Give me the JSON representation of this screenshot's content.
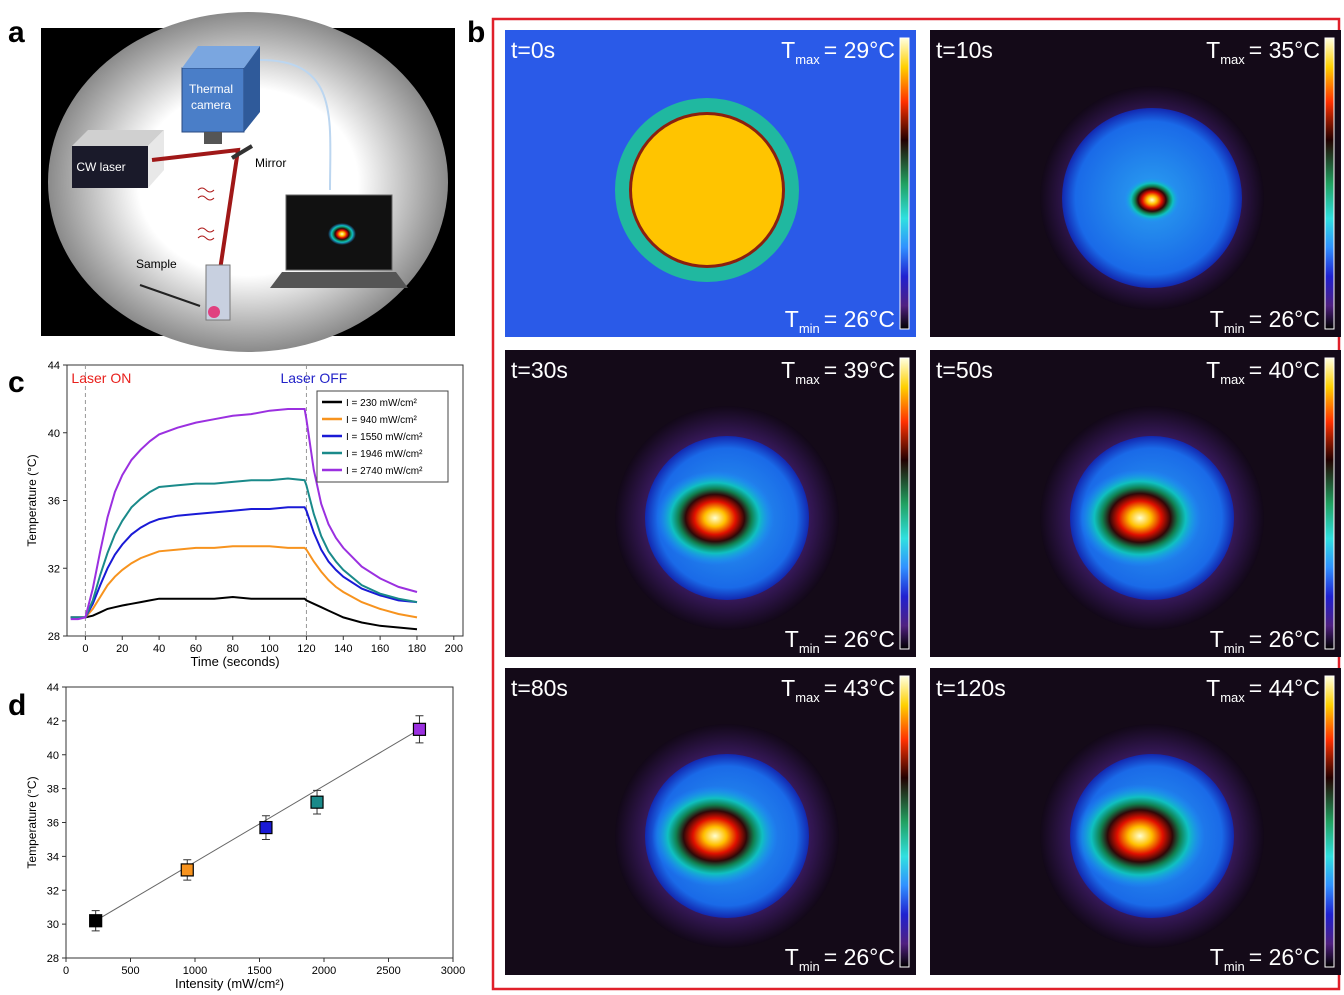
{
  "panel_labels": [
    "a",
    "b",
    "c",
    "d"
  ],
  "panel_a": {
    "camera": [
      "Thermal",
      "camera"
    ],
    "laser": "CW laser",
    "mirror": "Mirror",
    "sample": "Sample"
  },
  "panel_b": {
    "T": "T",
    "max": "max",
    "min": "min",
    "images": [
      {
        "time": "t=0s",
        "tmax": "= 29°C",
        "tmin": "= 26°C"
      },
      {
        "time": "t=10s",
        "tmax": "= 35°C",
        "tmin": "= 26°C"
      },
      {
        "time": "t=30s",
        "tmax": "= 39°C",
        "tmin": "= 26°C"
      },
      {
        "time": "t=50s",
        "tmax": "= 40°C",
        "tmin": "= 26°C"
      },
      {
        "time": "t=80s",
        "tmax": "= 43°C",
        "tmin": "= 26°C"
      },
      {
        "time": "t=120s",
        "tmax": "= 44°C",
        "tmin": "= 26°C"
      }
    ]
  },
  "chart_data": [
    {
      "type": "line",
      "x_label": "Time (seconds)",
      "y_label": "Temperature (°C)",
      "x": [
        -8,
        -4,
        0,
        4,
        8,
        12,
        16,
        20,
        25,
        30,
        35,
        40,
        50,
        60,
        70,
        80,
        90,
        100,
        110,
        119,
        120,
        124,
        128,
        132,
        136,
        140,
        150,
        160,
        170,
        180
      ],
      "series": [
        {
          "name": "I = 230 mW/cm²",
          "color": "#000000",
          "values": [
            29.1,
            29.1,
            29.1,
            29.2,
            29.4,
            29.6,
            29.7,
            29.8,
            29.9,
            30.0,
            30.1,
            30.2,
            30.2,
            30.2,
            30.2,
            30.3,
            30.2,
            30.2,
            30.2,
            30.2,
            30.1,
            29.9,
            29.7,
            29.5,
            29.3,
            29.1,
            28.8,
            28.6,
            28.5,
            28.4
          ]
        },
        {
          "name": "I = 940 mW/cm²",
          "color": "#f7931e",
          "values": [
            29.1,
            29.1,
            29.1,
            29.6,
            30.3,
            31.0,
            31.5,
            31.9,
            32.3,
            32.6,
            32.8,
            33.0,
            33.1,
            33.2,
            33.2,
            33.3,
            33.3,
            33.3,
            33.2,
            33.2,
            33.1,
            32.4,
            31.8,
            31.3,
            30.9,
            30.6,
            30.0,
            29.6,
            29.3,
            29.1
          ]
        },
        {
          "name": "I = 1550 mW/cm²",
          "color": "#1a1ad6",
          "values": [
            29.1,
            29.1,
            29.1,
            29.9,
            31.0,
            32.0,
            32.8,
            33.4,
            34.0,
            34.4,
            34.7,
            34.9,
            35.1,
            35.2,
            35.3,
            35.4,
            35.5,
            35.5,
            35.6,
            35.6,
            35.4,
            34.1,
            33.1,
            32.4,
            31.9,
            31.5,
            30.8,
            30.4,
            30.1,
            30.0
          ]
        },
        {
          "name": "I = 1946 mW/cm²",
          "color": "#1a8a8a",
          "values": [
            29.1,
            29.1,
            29.1,
            30.1,
            31.6,
            32.9,
            34.0,
            34.8,
            35.6,
            36.1,
            36.5,
            36.8,
            36.9,
            37.0,
            37.0,
            37.1,
            37.2,
            37.2,
            37.3,
            37.2,
            36.9,
            35.2,
            33.9,
            33.0,
            32.4,
            31.9,
            31.0,
            30.5,
            30.2,
            30.0
          ]
        },
        {
          "name": "I = 2740 mW/cm²",
          "color": "#9b30e0",
          "values": [
            29.0,
            29.0,
            29.1,
            30.8,
            33.0,
            35.0,
            36.5,
            37.5,
            38.4,
            39.0,
            39.5,
            39.9,
            40.3,
            40.6,
            40.8,
            41.0,
            41.1,
            41.3,
            41.4,
            41.4,
            40.8,
            37.8,
            35.8,
            34.6,
            33.8,
            33.2,
            32.1,
            31.4,
            30.9,
            30.6
          ]
        }
      ],
      "markers": [
        {
          "x": 0,
          "label": "Laser ON",
          "color": "#e8201c"
        },
        {
          "x": 120,
          "label": "Laser OFF",
          "color": "#2323c8"
        }
      ],
      "xlim": [
        -10,
        205
      ],
      "ylim": [
        28,
        44
      ],
      "xticks": [
        0,
        20,
        40,
        60,
        80,
        100,
        120,
        140,
        160,
        180,
        200
      ],
      "yticks": [
        28,
        32,
        36,
        40,
        44
      ],
      "legend": "upper right"
    },
    {
      "type": "scatter",
      "x_label": "Intensity (mW/cm²)",
      "y_label": "Temperature (°C)",
      "x": [
        230,
        940,
        1550,
        1946,
        2740
      ],
      "values": [
        30.2,
        33.2,
        35.7,
        37.2,
        41.5
      ],
      "errors": [
        0.6,
        0.6,
        0.7,
        0.7,
        0.8
      ],
      "colors": [
        "#000000",
        "#f7931e",
        "#1a1ad6",
        "#1a8a8a",
        "#9b30e0"
      ],
      "fit": {
        "x": [
          230,
          2740
        ],
        "values": [
          30.2,
          41.5
        ]
      },
      "xlim": [
        0,
        3000
      ],
      "ylim": [
        28,
        44
      ],
      "xticks": [
        0,
        500,
        1000,
        1500,
        2000,
        2500,
        3000
      ],
      "yticks": [
        28,
        30,
        32,
        34,
        36,
        38,
        40,
        42,
        44
      ]
    }
  ]
}
